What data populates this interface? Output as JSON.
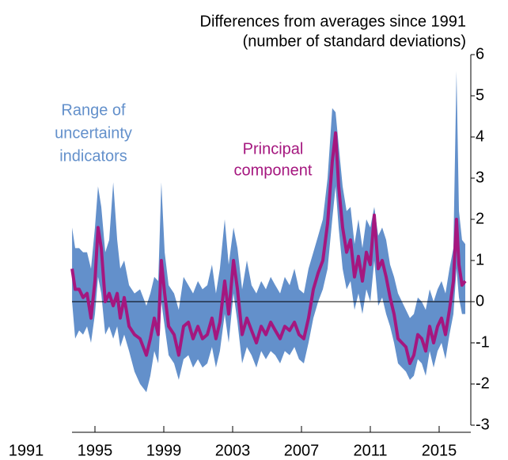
{
  "chart_data": {
    "type": "line",
    "title_lines": [
      "Differences from averages since 1991",
      "(number of standard deviations)"
    ],
    "x": [
      1993.67,
      1993.85,
      1994.08,
      1994.31,
      1994.54,
      1994.77,
      1995.0,
      1995.18,
      1995.37,
      1995.6,
      1995.83,
      1996.06,
      1996.29,
      1996.47,
      1996.7,
      1996.98,
      1997.3,
      1997.62,
      1997.99,
      1998.22,
      1998.45,
      1998.68,
      1998.86,
      1999.05,
      1999.28,
      1999.6,
      1999.87,
      2000.15,
      2000.43,
      2000.7,
      2000.98,
      2001.25,
      2001.53,
      2001.8,
      2002.03,
      2002.26,
      2002.54,
      2002.77,
      2003.05,
      2003.28,
      2003.55,
      2003.83,
      2004.1,
      2004.38,
      2004.66,
      2004.93,
      2005.21,
      2005.48,
      2005.76,
      2006.03,
      2006.31,
      2006.59,
      2006.86,
      2007.14,
      2007.41,
      2007.69,
      2007.97,
      2008.24,
      2008.52,
      2008.79,
      2008.98,
      2009.16,
      2009.39,
      2009.62,
      2009.85,
      2010.08,
      2010.31,
      2010.54,
      2010.77,
      2011.0,
      2011.23,
      2011.46,
      2011.69,
      2011.92,
      2012.15,
      2012.38,
      2012.61,
      2012.84,
      2013.07,
      2013.3,
      2013.53,
      2013.76,
      2013.99,
      2014.22,
      2014.45,
      2014.68,
      2014.91,
      2015.14,
      2015.37,
      2015.6,
      2015.83,
      2016.01,
      2016.15,
      2016.33,
      2016.52
    ],
    "xlim": [
      1991,
      2016.84
    ],
    "xticks": [
      1991,
      1995,
      1999,
      2003,
      2007,
      2011,
      2015
    ],
    "ylim": [
      -3,
      6
    ],
    "yticks": [
      -3,
      -2,
      -1,
      0,
      1,
      2,
      3,
      4,
      5,
      6
    ],
    "zero_line": true,
    "series": [
      {
        "kind": "band",
        "label_lines": [
          "Range of",
          "uncertainty",
          "indicators"
        ],
        "color": "#6390cb",
        "upper": [
          1.8,
          1.3,
          1.3,
          1.2,
          1.2,
          0.8,
          1.8,
          2.8,
          2.3,
          1.2,
          1.5,
          2.9,
          1.5,
          0.8,
          1.0,
          0.4,
          0.2,
          0.3,
          -0.1,
          0.2,
          0.6,
          0.5,
          2.9,
          1.2,
          0.4,
          0.2,
          -0.2,
          0.6,
          0.4,
          0.2,
          0.5,
          0.3,
          0.4,
          0.9,
          0.2,
          0.8,
          2.0,
          0.9,
          1.8,
          1.3,
          0.3,
          1.0,
          0.4,
          0.2,
          0.5,
          0.3,
          0.6,
          0.4,
          0.2,
          0.6,
          0.4,
          0.8,
          0.3,
          0.2,
          0.8,
          1.2,
          1.6,
          2.0,
          3.0,
          4.7,
          4.6,
          3.8,
          2.8,
          2.2,
          2.3,
          1.4,
          2.0,
          1.3,
          2.0,
          1.8,
          2.3,
          1.6,
          1.8,
          1.5,
          0.9,
          0.6,
          0.2,
          0.0,
          -0.2,
          -0.4,
          -0.3,
          0.1,
          0.0,
          -0.2,
          0.3,
          0.0,
          0.3,
          0.5,
          0.2,
          0.8,
          1.3,
          5.6,
          2.2,
          1.5,
          1.4
        ],
        "lower": [
          0.0,
          -0.9,
          -0.7,
          -0.8,
          -0.6,
          -1.0,
          -0.3,
          0.6,
          0.2,
          -0.8,
          -0.6,
          -0.9,
          -0.6,
          -1.1,
          -0.8,
          -1.2,
          -1.7,
          -2.0,
          -2.2,
          -1.8,
          -1.2,
          -1.5,
          0.0,
          -0.6,
          -1.3,
          -1.5,
          -1.9,
          -1.4,
          -1.3,
          -1.6,
          -1.4,
          -1.6,
          -1.5,
          -1.1,
          -1.6,
          -1.2,
          -0.3,
          -1.0,
          0.2,
          -0.5,
          -1.5,
          -1.1,
          -1.3,
          -1.6,
          -1.2,
          -1.4,
          -1.2,
          -1.3,
          -1.5,
          -1.2,
          -1.3,
          -1.1,
          -1.4,
          -1.5,
          -1.0,
          -0.4,
          0.0,
          0.3,
          0.8,
          2.0,
          2.8,
          1.8,
          0.8,
          0.3,
          0.5,
          -0.2,
          0.2,
          -0.3,
          0.3,
          0.0,
          1.0,
          -0.1,
          0.1,
          -0.3,
          -0.6,
          -1.0,
          -1.5,
          -1.6,
          -1.7,
          -1.9,
          -1.8,
          -1.4,
          -1.5,
          -1.8,
          -1.2,
          -1.6,
          -1.2,
          -1.0,
          -1.4,
          -0.8,
          -0.3,
          0.8,
          0.1,
          -0.3,
          -0.3
        ]
      },
      {
        "kind": "line",
        "label_lines": [
          "Principal",
          "component"
        ],
        "color": "#a5177f",
        "values": [
          0.8,
          0.3,
          0.3,
          0.1,
          0.2,
          -0.4,
          0.5,
          1.8,
          1.3,
          0.0,
          0.2,
          -0.1,
          0.2,
          -0.4,
          0.1,
          -0.6,
          -0.8,
          -0.9,
          -1.3,
          -0.9,
          -0.4,
          -0.8,
          1.0,
          0.2,
          -0.6,
          -0.8,
          -1.3,
          -0.6,
          -0.5,
          -0.9,
          -0.6,
          -0.9,
          -0.8,
          -0.4,
          -0.9,
          -0.5,
          0.5,
          -0.3,
          1.0,
          0.3,
          -0.8,
          -0.4,
          -0.7,
          -1.0,
          -0.6,
          -0.8,
          -0.5,
          -0.7,
          -0.9,
          -0.6,
          -0.7,
          -0.5,
          -0.8,
          -0.9,
          -0.4,
          0.3,
          0.7,
          1.0,
          1.9,
          3.4,
          4.1,
          2.8,
          1.8,
          1.2,
          1.5,
          0.6,
          1.1,
          0.5,
          1.2,
          0.9,
          2.1,
          0.8,
          1.0,
          0.6,
          0.1,
          -0.3,
          -0.9,
          -1.0,
          -1.1,
          -1.5,
          -1.3,
          -0.8,
          -0.9,
          -1.2,
          -0.6,
          -1.0,
          -0.6,
          -0.4,
          -0.8,
          -0.2,
          0.5,
          2.0,
          0.9,
          0.4,
          0.5
        ]
      }
    ]
  }
}
